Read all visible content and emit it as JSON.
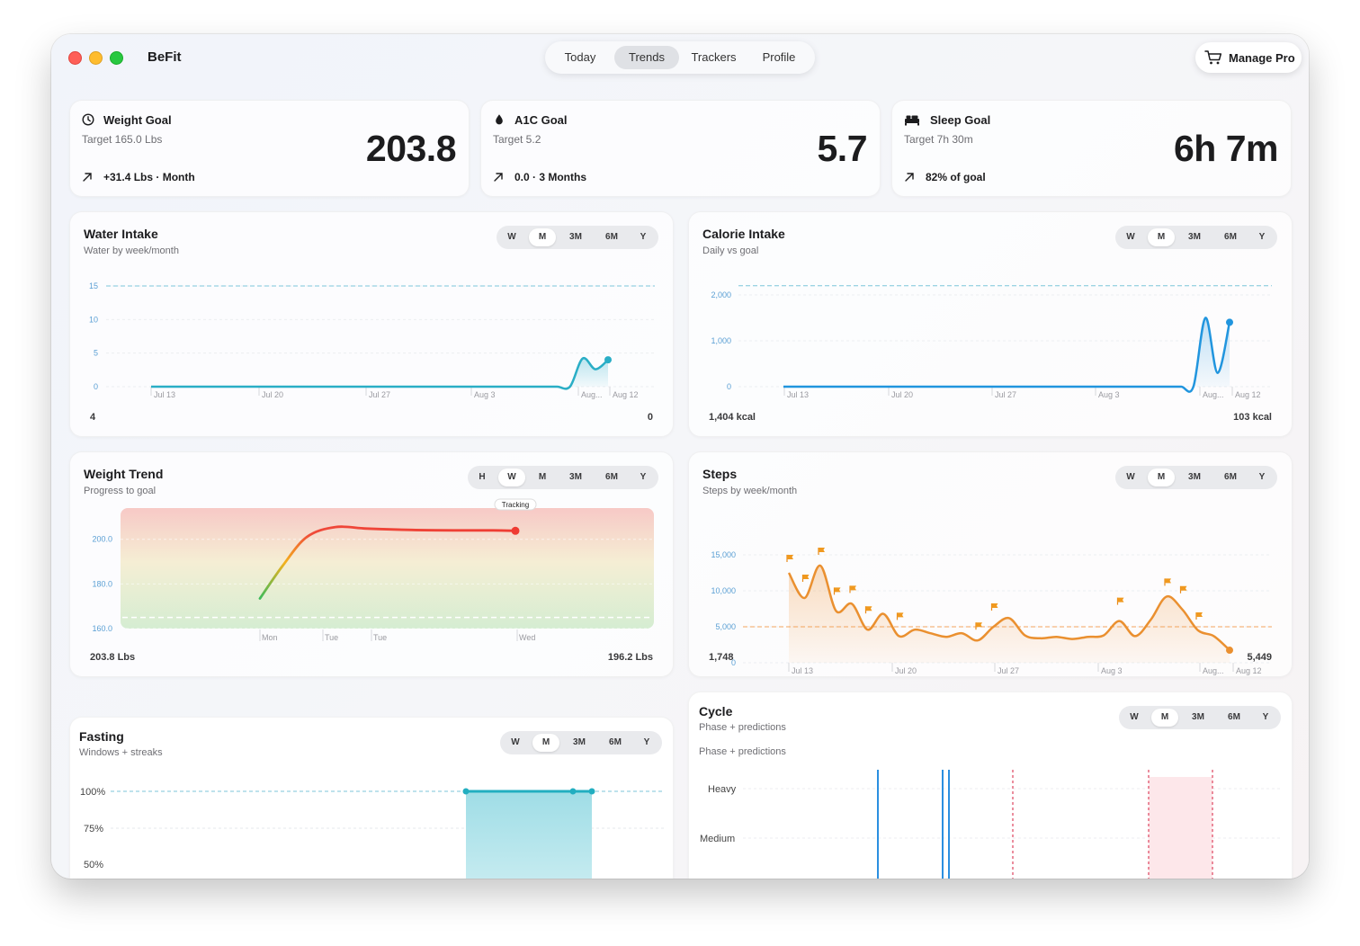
{
  "app": {
    "title": "BeFit"
  },
  "nav": {
    "tabs": [
      "Today",
      "Trends",
      "Trackers",
      "Profile"
    ],
    "active": "Trends"
  },
  "manage_pro": {
    "label": "Manage Pro",
    "icon": "cart-icon"
  },
  "goals": {
    "weight": {
      "title": "Weight Goal",
      "icon": "clock-icon",
      "target": "Target 165.0 Lbs",
      "value": "203.8",
      "delta": "+31.4 Lbs · Month"
    },
    "a1c": {
      "title": "A1C Goal",
      "icon": "drop-icon",
      "target": "Target 5.2",
      "value": "5.7",
      "delta": "0.0 · 3 Months"
    },
    "sleep": {
      "title": "Sleep Goal",
      "icon": "bed-icon",
      "target": "Target 7h 30m",
      "value": "6h 7m",
      "delta": "82% of goal"
    }
  },
  "water": {
    "title": "Water Intake",
    "subtitle": "Water by week/month",
    "ranges": [
      "W",
      "M",
      "3M",
      "6M",
      "Y"
    ],
    "active": "M",
    "footer_left": "4",
    "footer_right": "0",
    "chart_data": {
      "type": "area",
      "y_ticks": [
        "0",
        "5",
        "10",
        "15"
      ],
      "x_ticks": [
        "Jul 13",
        "Jul 20",
        "Jul 27",
        "Aug 3",
        "Aug...",
        "Aug 12"
      ],
      "goal_line": 15,
      "ylim": [
        0,
        15
      ],
      "values": [
        0,
        0,
        0,
        0,
        0,
        0,
        0,
        0,
        0,
        0,
        0,
        0,
        0,
        0,
        0,
        0,
        0,
        0,
        0,
        0,
        0,
        0,
        0,
        0,
        0,
        0,
        0,
        0,
        0,
        0,
        0,
        0,
        0,
        0,
        4.2,
        2.6,
        4
      ]
    }
  },
  "calorie": {
    "title": "Calorie Intake",
    "subtitle": "Daily vs goal",
    "ranges": [
      "W",
      "M",
      "3M",
      "6M",
      "Y"
    ],
    "active": "M",
    "footer_left": "1,404 kcal",
    "footer_right": "103 kcal",
    "chart_data": {
      "type": "area",
      "y_ticks": [
        "0",
        "1,000",
        "2,000"
      ],
      "x_ticks": [
        "Jul 13",
        "Jul 20",
        "Jul 27",
        "Aug 3",
        "Aug...",
        "Aug 12"
      ],
      "goal_line": 2200,
      "ylim": [
        0,
        2000
      ],
      "values": [
        0,
        0,
        0,
        0,
        0,
        0,
        0,
        0,
        0,
        0,
        0,
        0,
        0,
        0,
        0,
        0,
        0,
        0,
        0,
        0,
        0,
        0,
        0,
        0,
        0,
        0,
        0,
        0,
        0,
        0,
        0,
        0,
        0,
        0,
        0,
        1500,
        300,
        1404
      ]
    }
  },
  "weight": {
    "title": "Weight Trend",
    "subtitle": "Progress to goal",
    "ranges": [
      "H",
      "W",
      "M",
      "3M",
      "6M",
      "Y"
    ],
    "active": "W",
    "footer_left": "203.8 Lbs",
    "footer_right": "196.2 Lbs",
    "marker_label": "Tracking",
    "chart_data": {
      "type": "line",
      "y_ticks": [
        "160.0",
        "180.0",
        "200.0"
      ],
      "x_ticks": [
        "Mon",
        "Tue",
        "Tue",
        "Wed"
      ],
      "ylim": [
        160,
        214
      ],
      "goal_line": 165,
      "values": [
        173.5,
        188,
        201,
        205.5,
        204.8,
        204.2,
        204,
        204,
        203.8
      ]
    }
  },
  "steps": {
    "title": "Steps",
    "subtitle": "Steps by week/month",
    "ranges": [
      "W",
      "M",
      "3M",
      "6M",
      "Y"
    ],
    "active": "M",
    "footer_left": "1,748",
    "footer_right": "5,449",
    "chart_data": {
      "type": "area",
      "y_ticks": [
        "0",
        "5,000",
        "10,000",
        "15,000"
      ],
      "x_ticks": [
        "Jul 13",
        "Jul 20",
        "Jul 27",
        "Aug 3",
        "Aug...",
        "Aug 12"
      ],
      "goal_line": 5000,
      "ylim": [
        0,
        16000
      ],
      "values": [
        12500,
        9000,
        13500,
        7200,
        8200,
        4600,
        6800,
        3700,
        4600,
        4100,
        3600,
        4100,
        3100,
        5000,
        6200,
        3800,
        3400,
        3600,
        3300,
        3600,
        3800,
        5800,
        3700,
        6000,
        9200,
        7400,
        4500,
        3700,
        1748
      ],
      "flag_indices": [
        0,
        1,
        2,
        3,
        4,
        5,
        7,
        12,
        13,
        21,
        24,
        25,
        26
      ]
    }
  },
  "fasting": {
    "title": "Fasting",
    "subtitle": "Windows + streaks",
    "ranges": [
      "W",
      "M",
      "3M",
      "6M",
      "Y"
    ],
    "active": "M",
    "chart_data": {
      "type": "area",
      "y_ticks": [
        "100%",
        "75%",
        "50%"
      ],
      "goal_line": 100,
      "values": [
        0,
        0,
        0,
        0,
        0,
        100,
        100,
        100
      ]
    }
  },
  "cycle": {
    "title": "Cycle",
    "subtitle": "Phase + predictions",
    "ranges": [
      "W",
      "M",
      "3M",
      "6M",
      "Y"
    ],
    "active": "M",
    "inner_label": "Phase + predictions",
    "chart_data": {
      "type": "bar",
      "y_ticks": [
        "Heavy",
        "Medium"
      ],
      "period_marks": [
        1,
        5,
        5.4
      ],
      "prediction_marks": [
        9.5,
        17.8,
        21.8
      ]
    }
  }
}
